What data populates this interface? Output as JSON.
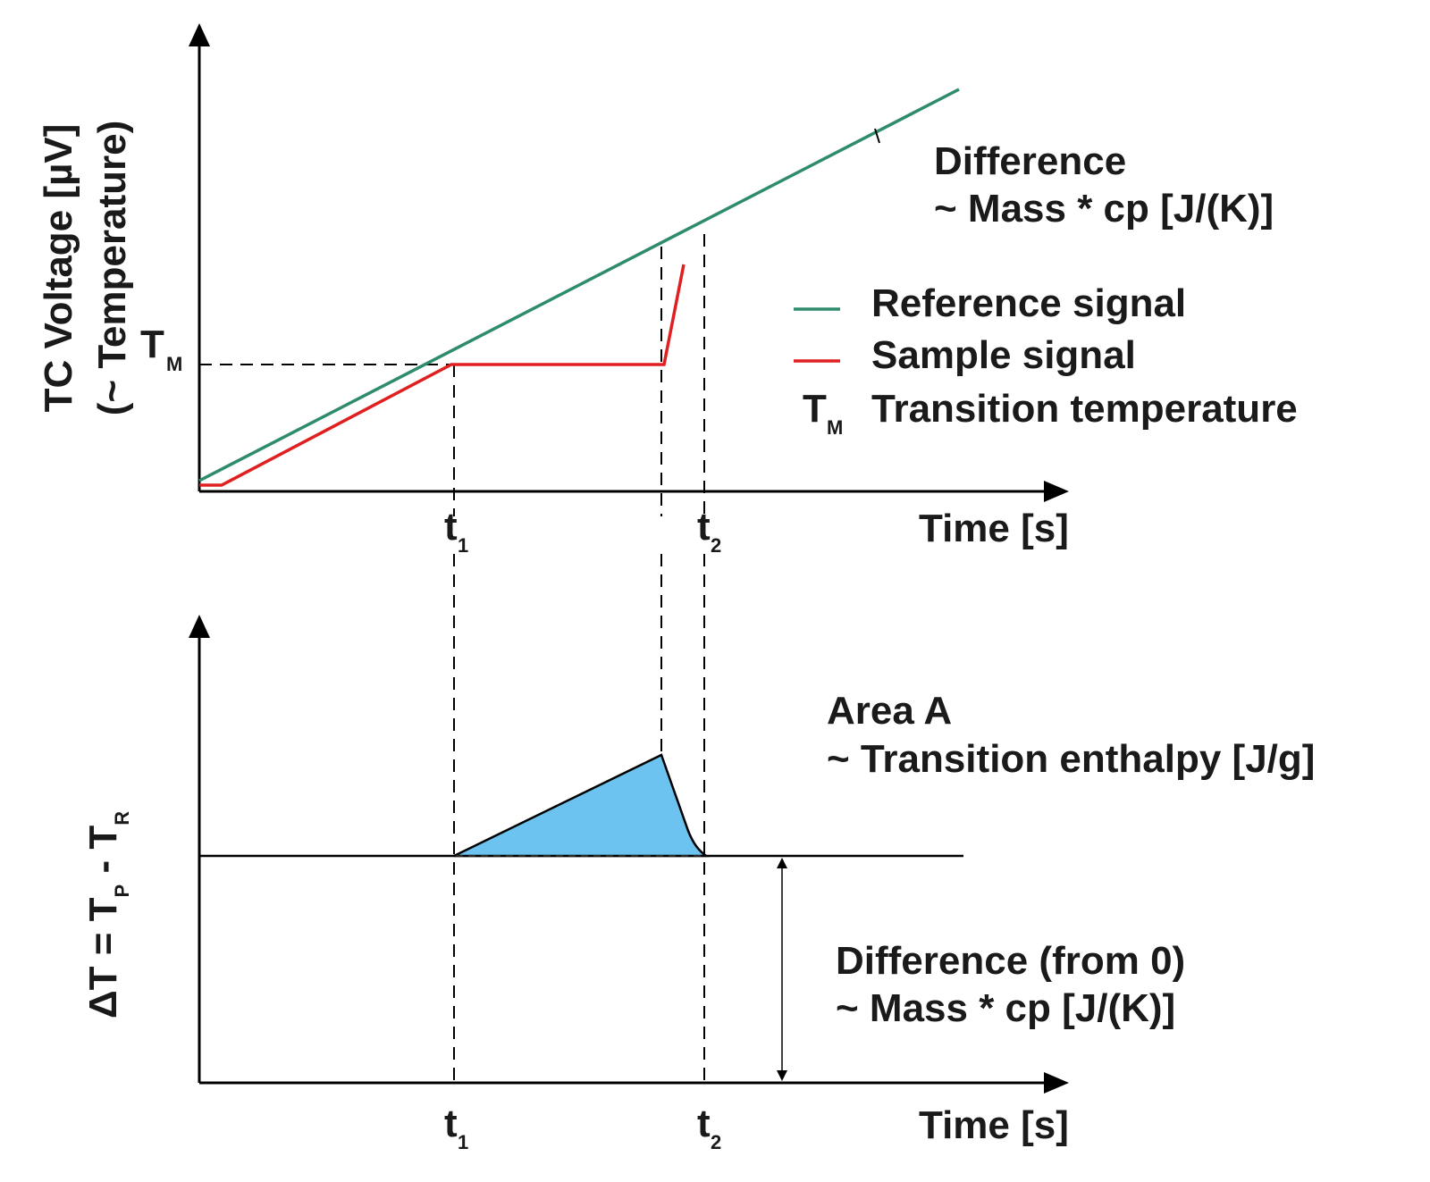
{
  "top_plot": {
    "y_axis_label_line1": "TC Voltage [µV]",
    "y_axis_label_line2": "(~ Temperature)",
    "x_axis_label": "Time [s]",
    "tm_label": "T",
    "tm_sub": "M",
    "t1_label": "t",
    "t1_sub": "1",
    "t2_label": "t",
    "t2_sub": "2",
    "difference_line1": "Difference",
    "difference_line2": "~ Mass * cp [J/(K)]"
  },
  "legend": {
    "reference": {
      "label": "Reference signal",
      "color": "#2e8b6e"
    },
    "sample": {
      "label": "Sample signal",
      "color": "#e02020"
    },
    "tm": {
      "symbol": "T",
      "sub": "M",
      "label": "Transition temperature"
    }
  },
  "bottom_plot": {
    "y_axis_label": "ΔT = T",
    "y_sub_p": "P",
    "y_mid": " - T",
    "y_sub_r": "R",
    "x_axis_label": "Time [s]",
    "t1_label": "t",
    "t1_sub": "1",
    "t2_label": "t",
    "t2_sub": "2",
    "area_line1": "Area A",
    "area_line2": "~ Transition enthalpy [J/g]",
    "area_color": "#6cc3ef",
    "difference_line1": "Difference (from 0)",
    "difference_line2": "~ Mass * cp [J/(K)]"
  }
}
